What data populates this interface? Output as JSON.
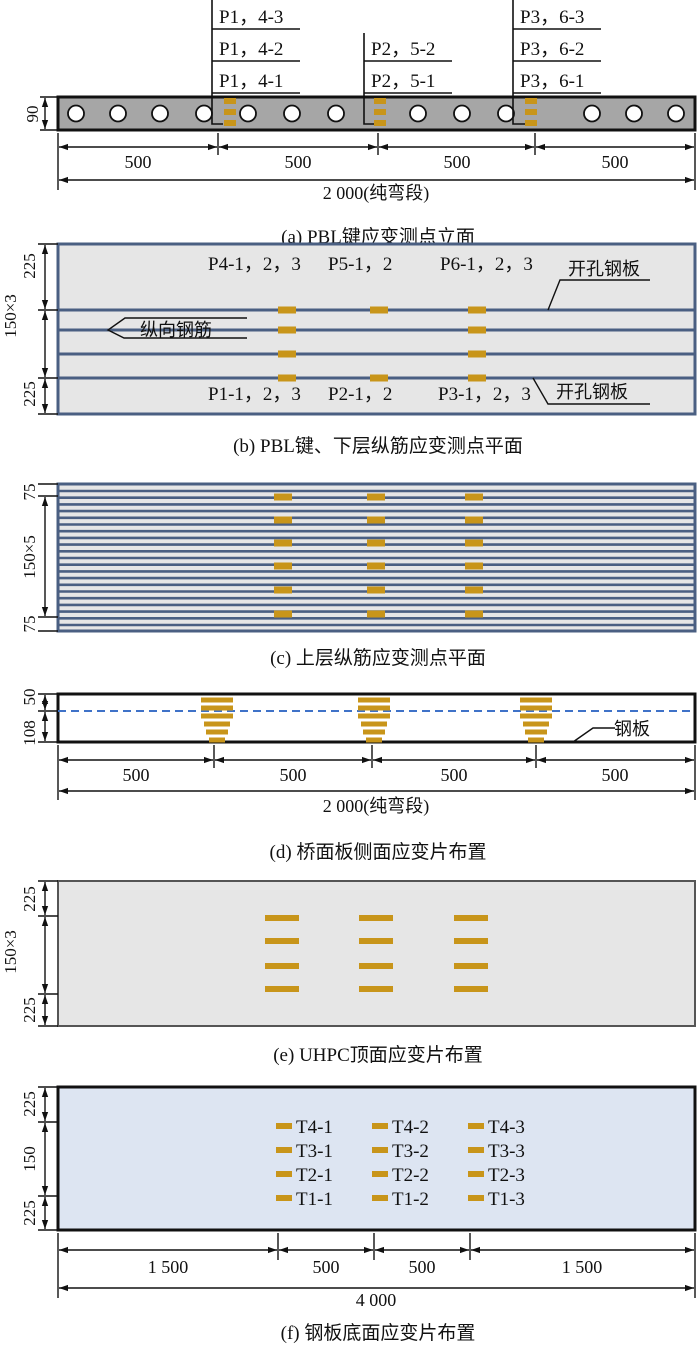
{
  "colors": {
    "gauge": "#c8951a",
    "rebar": "#4a5f82",
    "beam_a": "#a6a6a6",
    "panel": "#e6e6e6",
    "panel_f": "#dde5f2",
    "dashed": "#3f72c8"
  },
  "a": {
    "caption": "(a)  PBL键应变测点立面",
    "p1": [
      "P1，4-3",
      "P1，4-2",
      "P1，4-1"
    ],
    "p2": [
      "P2，5-2",
      "P2，5-1"
    ],
    "p3": [
      "P3，6-3",
      "P3，6-2",
      "P3，6-1"
    ],
    "height": "90",
    "spans": [
      "500",
      "500",
      "500",
      "500"
    ],
    "total": "2 000(纯弯段)"
  },
  "b": {
    "caption": "(b)  PBL键、下层纵筋应变测点平面",
    "top_labels": [
      "P4-1，2，3",
      "P5-1，2",
      "P6-1，2，3"
    ],
    "bottom_labels": [
      "P1-1，2，3",
      "P2-1，2",
      "P3-1，2，3"
    ],
    "plate_top": "开孔钢板",
    "plate_bottom": "开孔钢板",
    "rebar": "纵向钢筋",
    "dims": [
      "225",
      "150×3",
      "225"
    ]
  },
  "c": {
    "caption": "(c)  上层纵筋应变测点平面",
    "dims": [
      "75",
      "150×5",
      "75"
    ]
  },
  "d": {
    "caption": "(d)  桥面板侧面应变片布置",
    "dims": [
      "108",
      "50"
    ],
    "steel": "钢板",
    "spans": [
      "500",
      "500",
      "500",
      "500"
    ],
    "total": "2 000(纯弯段)"
  },
  "e": {
    "caption": "(e)  UHPC顶面应变片布置",
    "dims": [
      "225",
      "150×3",
      "225"
    ]
  },
  "f": {
    "caption": "(f)  钢板底面应变片布置",
    "gauges": [
      [
        "T4-1",
        "T4-2",
        "T4-3"
      ],
      [
        "T3-1",
        "T3-2",
        "T3-3"
      ],
      [
        "T2-1",
        "T2-2",
        "T2-3"
      ],
      [
        "T1-1",
        "T1-2",
        "T1-3"
      ]
    ],
    "dims": [
      "225",
      "150",
      "225"
    ],
    "spans": [
      "1 500",
      "500",
      "500",
      "1 500"
    ],
    "total": "4 000"
  }
}
